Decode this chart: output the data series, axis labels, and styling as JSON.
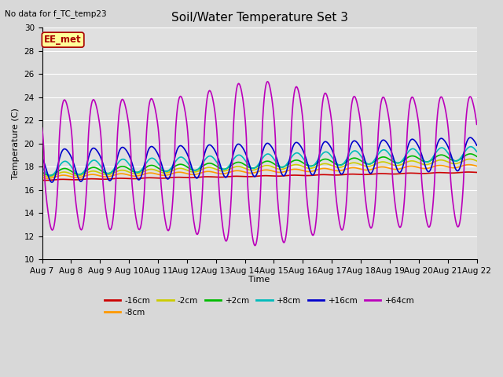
{
  "title": "Soil/Water Temperature Set 3",
  "xlabel": "Time",
  "ylabel": "Temperature (C)",
  "top_left_text": "No data for f_TC_temp23",
  "annotation_text": "EE_met",
  "ylim": [
    10,
    30
  ],
  "yticks": [
    10,
    12,
    14,
    16,
    18,
    20,
    22,
    24,
    26,
    28,
    30
  ],
  "x_tick_labels": [
    "Aug 7",
    "Aug 8",
    "Aug 9",
    "Aug 10",
    "Aug 11",
    "Aug 12",
    "Aug 13",
    "Aug 14",
    "Aug 15",
    "Aug 16",
    "Aug 17",
    "Aug 18",
    "Aug 19",
    "Aug 20",
    "Aug 21",
    "Aug 22"
  ],
  "bg_color": "#d8d8d8",
  "plot_bg_color": "#e0e0e0",
  "grid_color": "#ffffff",
  "series": {
    "-16cm": {
      "color": "#cc0000",
      "lw": 1.2
    },
    "-8cm": {
      "color": "#ff9900",
      "lw": 1.2
    },
    "-2cm": {
      "color": "#cccc00",
      "lw": 1.2
    },
    "+2cm": {
      "color": "#00bb00",
      "lw": 1.2
    },
    "+8cm": {
      "color": "#00bbbb",
      "lw": 1.2
    },
    "+16cm": {
      "color": "#0000cc",
      "lw": 1.2
    },
    "+64cm": {
      "color": "#bb00bb",
      "lw": 1.2
    }
  },
  "annotation_box_color": "#ffff99",
  "annotation_box_edge": "#aa0000",
  "title_fontsize": 11,
  "label_fontsize": 8,
  "tick_fontsize": 7.5
}
